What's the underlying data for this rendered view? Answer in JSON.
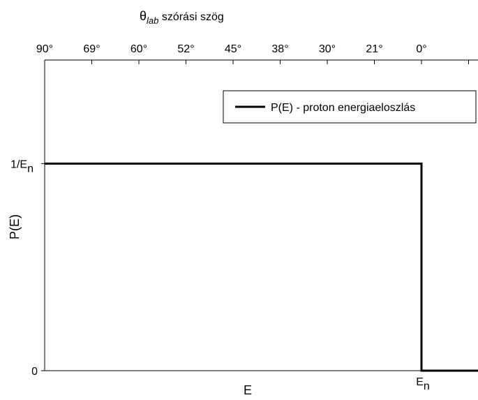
{
  "chart_data": {
    "type": "line",
    "top_axis": {
      "title_symbol": "θ",
      "title_subscript": "lab",
      "title_text": " szórási szög",
      "tick_labels": [
        "90°",
        "69°",
        "60°",
        "52°",
        "45°",
        "38°",
        "30°",
        "21°",
        "0°"
      ],
      "tick_positions": [
        0,
        1,
        2,
        3,
        4,
        5,
        6,
        7,
        8
      ]
    },
    "x_axis": {
      "label": "E",
      "tick_main": "E",
      "tick_sub": "n",
      "tick_value": 8,
      "range": [
        0,
        9.2
      ]
    },
    "y_axis": {
      "label": "P(E)",
      "range": [
        0,
        1.5
      ],
      "ticks": [
        {
          "value": 0,
          "main": "0",
          "sub": ""
        },
        {
          "value": 1,
          "main": "1/E",
          "sub": "n"
        }
      ]
    },
    "series": [
      {
        "name": "P(E) - proton energiaeloszlás",
        "color": "#000000",
        "points": [
          [
            0,
            1
          ],
          [
            8,
            1
          ],
          [
            8,
            0
          ],
          [
            9.2,
            0
          ]
        ]
      }
    ],
    "legend": {
      "position": "top-right"
    },
    "grid": false
  }
}
